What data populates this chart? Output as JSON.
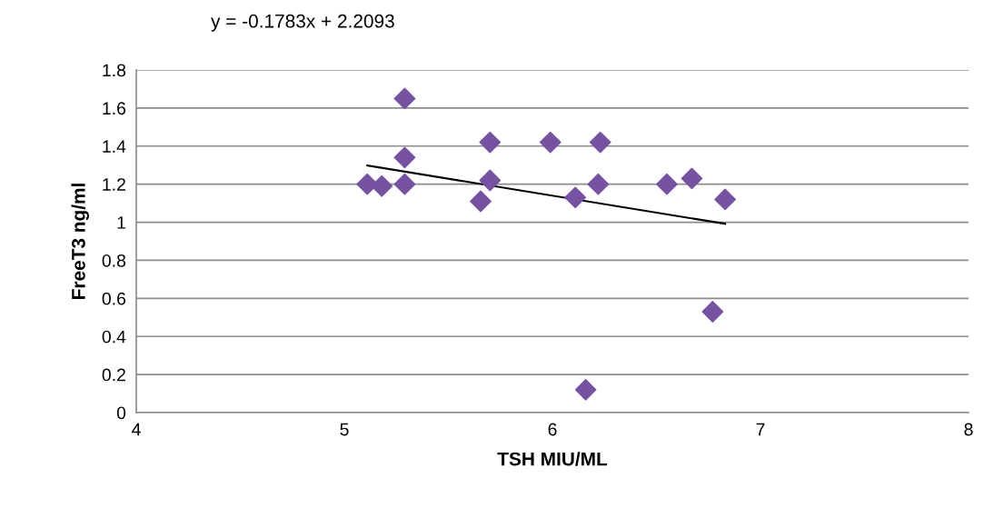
{
  "chart_data": {
    "type": "scatter",
    "xlabel": "TSH MIU/ML",
    "ylabel": "FreeT3 ng/ml",
    "annotations": [
      "y = -0.1783x + 2.2093"
    ],
    "series": [
      {
        "color": "#7652a3",
        "marker": "diamond",
        "x": [
          5.11,
          5.18,
          5.29,
          5.29,
          5.29,
          5.7,
          5.7,
          5.655,
          5.99,
          6.23,
          6.11,
          6.22,
          6.55,
          6.67,
          6.83,
          6.77,
          6.16
        ],
        "values": [
          1.2,
          1.19,
          1.65,
          1.34,
          1.2,
          1.42,
          1.22,
          1.11,
          1.42,
          1.42,
          1.13,
          1.2,
          1.2,
          1.23,
          1.12,
          0.53,
          0.12
        ]
      },
      {
        "type": "line",
        "color": "#000000",
        "marker": "none",
        "x": [
          5.11,
          6.83
        ],
        "values": [
          1.298,
          0.992
        ]
      }
    ],
    "xlim": [
      4,
      8
    ],
    "xticks": [
      4,
      5,
      6,
      7,
      8
    ],
    "ylim": [
      0,
      1.8
    ],
    "yticks": [
      0,
      0.2,
      0.4,
      0.6,
      0.8,
      1,
      1.2,
      1.4,
      1.6,
      1.8
    ],
    "grid": "y"
  }
}
